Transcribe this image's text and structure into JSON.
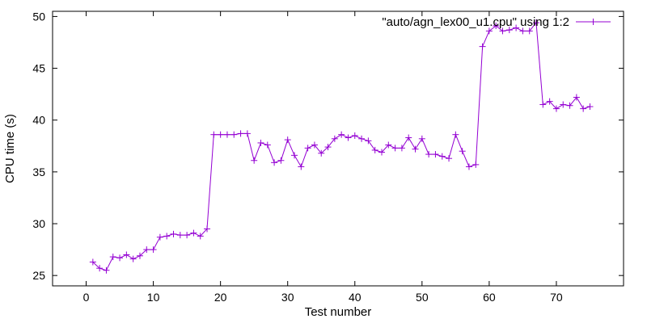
{
  "chart_data": {
    "type": "line",
    "title": "",
    "xlabel": "Test number",
    "ylabel": "CPU time (s)",
    "xlim": [
      -5,
      80
    ],
    "ylim": [
      24,
      50.5
    ],
    "xticks": [
      0,
      10,
      20,
      30,
      40,
      50,
      60,
      70
    ],
    "yticks": [
      25,
      30,
      35,
      40,
      45,
      50
    ],
    "grid": false,
    "legend_position": "top-right",
    "series": [
      {
        "name": "\"auto/agn_lex00_u1.cpu\" using 1:2",
        "color": "#9400d3",
        "marker": "plus",
        "x": [
          1,
          2,
          3,
          4,
          5,
          6,
          7,
          8,
          9,
          10,
          11,
          12,
          13,
          14,
          15,
          16,
          17,
          18,
          19,
          20,
          21,
          22,
          23,
          24,
          25,
          26,
          27,
          28,
          29,
          30,
          31,
          32,
          33,
          34,
          35,
          36,
          37,
          38,
          39,
          40,
          41,
          42,
          43,
          44,
          45,
          46,
          47,
          48,
          49,
          50,
          51,
          52,
          53,
          54,
          55,
          56,
          57,
          58,
          59,
          60,
          61,
          62,
          63,
          64,
          65,
          66,
          67,
          68,
          69,
          70,
          71,
          72,
          73,
          74,
          75
        ],
        "y": [
          26.3,
          25.7,
          25.5,
          26.8,
          26.7,
          27.0,
          26.6,
          26.9,
          27.5,
          27.5,
          28.7,
          28.8,
          29.0,
          28.9,
          28.9,
          29.1,
          28.8,
          29.5,
          38.6,
          38.6,
          38.6,
          38.6,
          38.7,
          38.7,
          36.1,
          37.8,
          37.6,
          35.9,
          36.1,
          38.1,
          36.6,
          35.5,
          37.3,
          37.6,
          36.8,
          37.4,
          38.2,
          38.6,
          38.3,
          38.5,
          38.2,
          38.0,
          37.1,
          36.9,
          37.6,
          37.3,
          37.3,
          38.3,
          37.2,
          38.2,
          36.7,
          36.7,
          36.5,
          36.3,
          38.6,
          37.0,
          35.5,
          35.7,
          47.1,
          48.6,
          49.1,
          48.6,
          48.7,
          48.9,
          48.6,
          48.6,
          49.4,
          41.5,
          41.8,
          41.1,
          41.5,
          41.4,
          42.2,
          41.1,
          41.3
        ]
      }
    ]
  }
}
